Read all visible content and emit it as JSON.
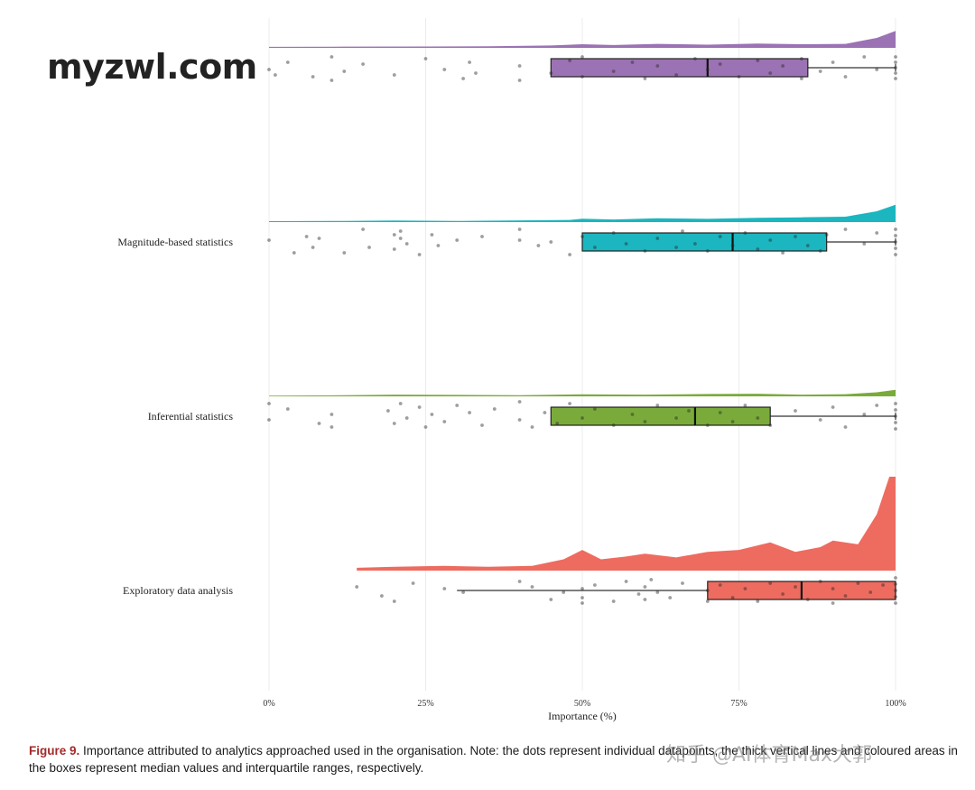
{
  "watermark": "myzwl.com",
  "zhihu_watermark": "知乎 @AI体育Max大郭",
  "caption": {
    "figure_label": "Figure 9.",
    "text": " Importance attributed to analytics approached used in the organisation. Note: the dots represent individual datapoints, the thick vertical lines and coloured areas in the boxes represent median values and interquartile ranges, respectively."
  },
  "chart_data": {
    "type": "raincloud",
    "xlabel": "Importance (%)",
    "xlim": [
      0,
      100
    ],
    "x_ticks": [
      0,
      25,
      50,
      75,
      100
    ],
    "x_tick_labels": [
      "0%",
      "25%",
      "50%",
      "75%",
      "100%"
    ],
    "grid": "vertical",
    "series": [
      {
        "name": "",
        "color": "#9b72b3",
        "box": {
          "q1": 45,
          "median": 70,
          "q3": 86,
          "whisker_low": 45,
          "whisker_high": 100
        },
        "density": [
          [
            0,
            0.05
          ],
          [
            10,
            0.06
          ],
          [
            25,
            0.07
          ],
          [
            35,
            0.08
          ],
          [
            45,
            0.12
          ],
          [
            50,
            0.18
          ],
          [
            55,
            0.14
          ],
          [
            62,
            0.2
          ],
          [
            70,
            0.16
          ],
          [
            78,
            0.22
          ],
          [
            85,
            0.18
          ],
          [
            92,
            0.2
          ],
          [
            97,
            0.5
          ],
          [
            100,
            0.85
          ]
        ],
        "points": [
          [
            0,
            2
          ],
          [
            1,
            8
          ],
          [
            3,
            -6
          ],
          [
            7,
            10
          ],
          [
            10,
            -12
          ],
          [
            10,
            14
          ],
          [
            12,
            4
          ],
          [
            15,
            -4
          ],
          [
            20,
            8
          ],
          [
            25,
            -10
          ],
          [
            28,
            2
          ],
          [
            31,
            12
          ],
          [
            32,
            -6
          ],
          [
            33,
            6
          ],
          [
            40,
            -2
          ],
          [
            40,
            14
          ],
          [
            45,
            6
          ],
          [
            48,
            -8
          ],
          [
            50,
            10
          ],
          [
            50,
            -12
          ],
          [
            55,
            4
          ],
          [
            58,
            -6
          ],
          [
            60,
            12
          ],
          [
            62,
            -2
          ],
          [
            65,
            8
          ],
          [
            68,
            -10
          ],
          [
            70,
            2
          ],
          [
            72,
            -4
          ],
          [
            75,
            10
          ],
          [
            78,
            -8
          ],
          [
            80,
            6
          ],
          [
            82,
            -2
          ],
          [
            85,
            12
          ],
          [
            85,
            -10
          ],
          [
            88,
            4
          ],
          [
            90,
            -6
          ],
          [
            92,
            10
          ],
          [
            95,
            -12
          ],
          [
            97,
            2
          ],
          [
            100,
            -12
          ],
          [
            100,
            -6
          ],
          [
            100,
            0
          ],
          [
            100,
            6
          ],
          [
            100,
            12
          ]
        ]
      },
      {
        "name": "Magnitude-based statistics",
        "color": "#1bb6bf",
        "box": {
          "q1": 50,
          "median": 74,
          "q3": 89,
          "whisker_low": 50,
          "whisker_high": 100
        },
        "density": [
          [
            0,
            0.04
          ],
          [
            10,
            0.05
          ],
          [
            20,
            0.07
          ],
          [
            30,
            0.05
          ],
          [
            40,
            0.08
          ],
          [
            48,
            0.1
          ],
          [
            50,
            0.16
          ],
          [
            55,
            0.12
          ],
          [
            62,
            0.18
          ],
          [
            70,
            0.15
          ],
          [
            78,
            0.2
          ],
          [
            85,
            0.22
          ],
          [
            92,
            0.25
          ],
          [
            97,
            0.5
          ],
          [
            100,
            0.8
          ]
        ],
        "points": [
          [
            0,
            -2
          ],
          [
            4,
            12
          ],
          [
            6,
            -6
          ],
          [
            7,
            6
          ],
          [
            8,
            -4
          ],
          [
            12,
            12
          ],
          [
            15,
            -14
          ],
          [
            16,
            6
          ],
          [
            20,
            -8
          ],
          [
            20,
            8
          ],
          [
            21,
            -12
          ],
          [
            21,
            -4
          ],
          [
            22,
            2
          ],
          [
            24,
            14
          ],
          [
            26,
            -8
          ],
          [
            27,
            4
          ],
          [
            30,
            -2
          ],
          [
            34,
            -6
          ],
          [
            40,
            -14
          ],
          [
            40,
            -2
          ],
          [
            43,
            4
          ],
          [
            45,
            0
          ],
          [
            48,
            14
          ],
          [
            50,
            -6
          ],
          [
            52,
            6
          ],
          [
            55,
            -10
          ],
          [
            57,
            2
          ],
          [
            60,
            10
          ],
          [
            62,
            -4
          ],
          [
            65,
            6
          ],
          [
            66,
            -12
          ],
          [
            68,
            2
          ],
          [
            70,
            10
          ],
          [
            72,
            -6
          ],
          [
            74,
            4
          ],
          [
            76,
            -10
          ],
          [
            78,
            8
          ],
          [
            80,
            -2
          ],
          [
            82,
            12
          ],
          [
            84,
            -6
          ],
          [
            86,
            4
          ],
          [
            88,
            10
          ],
          [
            89,
            -8
          ],
          [
            92,
            -14
          ],
          [
            95,
            2
          ],
          [
            97,
            -10
          ],
          [
            100,
            -14
          ],
          [
            100,
            -7
          ],
          [
            100,
            0
          ],
          [
            100,
            7
          ],
          [
            100,
            14
          ]
        ]
      },
      {
        "name": "Inferential statistics",
        "color": "#7aab3a",
        "box": {
          "q1": 45,
          "median": 68,
          "q3": 80,
          "whisker_low": 45,
          "whisker_high": 100
        },
        "density": [
          [
            0,
            0.05
          ],
          [
            10,
            0.07
          ],
          [
            20,
            0.12
          ],
          [
            30,
            0.1
          ],
          [
            40,
            0.08
          ],
          [
            50,
            0.14
          ],
          [
            60,
            0.12
          ],
          [
            70,
            0.16
          ],
          [
            78,
            0.18
          ],
          [
            85,
            0.12
          ],
          [
            92,
            0.15
          ],
          [
            97,
            0.28
          ],
          [
            100,
            0.45
          ]
        ],
        "points": [
          [
            0,
            -14
          ],
          [
            0,
            4
          ],
          [
            3,
            -8
          ],
          [
            8,
            8
          ],
          [
            10,
            -2
          ],
          [
            10,
            12
          ],
          [
            19,
            -6
          ],
          [
            20,
            8
          ],
          [
            21,
            -14
          ],
          [
            22,
            2
          ],
          [
            24,
            -10
          ],
          [
            25,
            12
          ],
          [
            26,
            -2
          ],
          [
            28,
            6
          ],
          [
            30,
            -12
          ],
          [
            32,
            -4
          ],
          [
            34,
            10
          ],
          [
            36,
            -8
          ],
          [
            40,
            4
          ],
          [
            40,
            -16
          ],
          [
            42,
            12
          ],
          [
            44,
            -4
          ],
          [
            46,
            8
          ],
          [
            48,
            -14
          ],
          [
            50,
            2
          ],
          [
            52,
            -8
          ],
          [
            55,
            10
          ],
          [
            58,
            -2
          ],
          [
            60,
            6
          ],
          [
            62,
            -12
          ],
          [
            65,
            2
          ],
          [
            67,
            -6
          ],
          [
            70,
            10
          ],
          [
            72,
            -4
          ],
          [
            74,
            6
          ],
          [
            76,
            -12
          ],
          [
            78,
            2
          ],
          [
            80,
            10
          ],
          [
            84,
            -6
          ],
          [
            88,
            4
          ],
          [
            90,
            -10
          ],
          [
            92,
            12
          ],
          [
            95,
            -2
          ],
          [
            97,
            -12
          ],
          [
            100,
            -14
          ],
          [
            100,
            -7
          ],
          [
            100,
            0
          ],
          [
            100,
            7
          ],
          [
            100,
            14
          ]
        ]
      },
      {
        "name": "Exploratory data analysis",
        "color": "#ee6b60",
        "box": {
          "q1": 70,
          "median": 85,
          "q3": 100,
          "whisker_low": 30,
          "whisker_high": 100
        },
        "density": [
          [
            14,
            0.03
          ],
          [
            20,
            0.04
          ],
          [
            28,
            0.05
          ],
          [
            35,
            0.04
          ],
          [
            42,
            0.05
          ],
          [
            47,
            0.12
          ],
          [
            50,
            0.22
          ],
          [
            53,
            0.12
          ],
          [
            57,
            0.15
          ],
          [
            60,
            0.18
          ],
          [
            65,
            0.14
          ],
          [
            70,
            0.2
          ],
          [
            75,
            0.22
          ],
          [
            80,
            0.3
          ],
          [
            84,
            0.2
          ],
          [
            88,
            0.25
          ],
          [
            90,
            0.32
          ],
          [
            94,
            0.28
          ],
          [
            97,
            0.6
          ],
          [
            99,
            1.0
          ],
          [
            100,
            1.0
          ]
        ],
        "points": [
          [
            14,
            -4
          ],
          [
            18,
            6
          ],
          [
            20,
            12
          ],
          [
            23,
            -8
          ],
          [
            28,
            -2
          ],
          [
            31,
            2
          ],
          [
            40,
            -10
          ],
          [
            42,
            -4
          ],
          [
            45,
            10
          ],
          [
            47,
            2
          ],
          [
            50,
            -2
          ],
          [
            50,
            8
          ],
          [
            50,
            14
          ],
          [
            52,
            -6
          ],
          [
            55,
            12
          ],
          [
            57,
            -10
          ],
          [
            59,
            4
          ],
          [
            60,
            -4
          ],
          [
            60,
            10
          ],
          [
            61,
            -12
          ],
          [
            62,
            2
          ],
          [
            64,
            8
          ],
          [
            66,
            -8
          ],
          [
            70,
            0
          ],
          [
            70,
            12
          ],
          [
            72,
            -6
          ],
          [
            74,
            8
          ],
          [
            76,
            -2
          ],
          [
            78,
            12
          ],
          [
            80,
            -8
          ],
          [
            82,
            4
          ],
          [
            84,
            -4
          ],
          [
            86,
            10
          ],
          [
            88,
            -10
          ],
          [
            90,
            -2
          ],
          [
            90,
            14
          ],
          [
            92,
            6
          ],
          [
            94,
            -8
          ],
          [
            96,
            2
          ],
          [
            98,
            -6
          ],
          [
            100,
            -14
          ],
          [
            100,
            -7
          ],
          [
            100,
            0
          ],
          [
            100,
            7
          ],
          [
            100,
            14
          ]
        ]
      }
    ]
  }
}
